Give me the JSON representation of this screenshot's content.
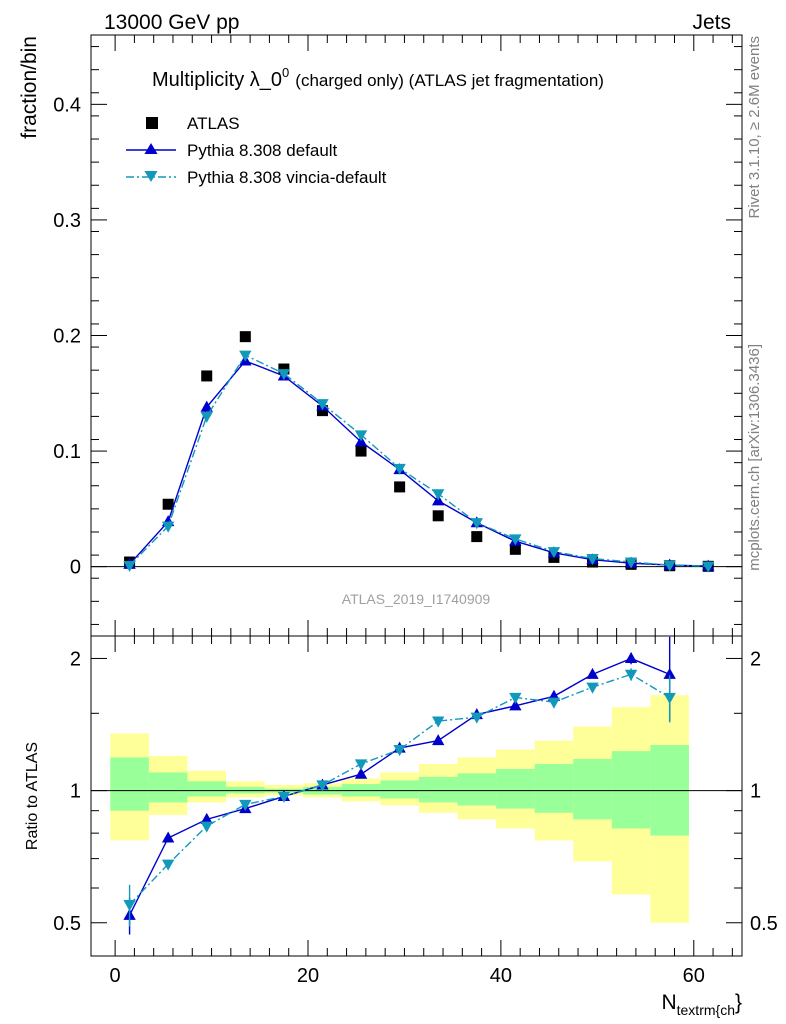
{
  "header": {
    "left": "13000 GeV pp",
    "right": "Jets"
  },
  "side_labels": {
    "rivet": "Rivet 3.1.10, ≥ 2.6M events",
    "mcplots": "mcplots.cern.ch [arXiv:1306.3436]"
  },
  "chart_data": [
    {
      "type": "scatter",
      "title": "Multiplicity λ_0",
      "title_sup": "0",
      "title_suffix": "(charged only) (ATLAS jet fragmentation)",
      "ylabel": "fraction/bin",
      "ylim": [
        -0.06,
        0.46
      ],
      "yticks": [
        0,
        0.1,
        0.2,
        0.3,
        0.4
      ],
      "ytick_labels": [
        "0",
        "0.1",
        "0.2",
        "0.3",
        "0.4"
      ],
      "watermark": "ATLAS_2019_I1740909",
      "x": [
        1.5,
        5.5,
        9.5,
        13.5,
        17.5,
        21.5,
        25.5,
        29.5,
        33.5,
        37.5,
        41.5,
        45.5,
        49.5,
        53.5,
        57.5,
        61.5
      ],
      "series": [
        {
          "name": "ATLAS",
          "color": "#000000",
          "marker": "square",
          "values": [
            0.004,
            0.054,
            0.165,
            0.199,
            0.171,
            0.135,
            0.1,
            0.069,
            0.044,
            0.026,
            0.015,
            0.008,
            0.004,
            0.002,
            0.0008,
            0.0003
          ]
        },
        {
          "name": "Pythia 8.308 default",
          "color": "#0000cc",
          "marker": "triangle-up",
          "line": "solid",
          "values": [
            0.002,
            0.039,
            0.138,
            0.178,
            0.165,
            0.139,
            0.108,
            0.084,
            0.057,
            0.038,
            0.022,
            0.012,
            0.006,
            0.003,
            0.0014,
            0.0005
          ]
        },
        {
          "name": "Pythia 8.308 vincia-default",
          "color": "#1199bb",
          "marker": "triangle-down",
          "line": "dashdot",
          "values": [
            0.001,
            0.035,
            0.13,
            0.183,
            0.167,
            0.141,
            0.114,
            0.085,
            0.063,
            0.038,
            0.024,
            0.013,
            0.007,
            0.004,
            0.0013,
            0.0004
          ]
        }
      ]
    },
    {
      "type": "scatter",
      "ylabel": "Ratio to ATLAS",
      "xlabel": "N",
      "xlabel_sub": "textrm{ch",
      "xlabel_tail": "}",
      "xlim": [
        -2.5,
        65
      ],
      "xticks": [
        0,
        20,
        40,
        60
      ],
      "xtick_labels": [
        "0",
        "20",
        "40",
        "60"
      ],
      "ylim": [
        0.42,
        2.25
      ],
      "yticks": [
        0.5,
        1,
        2
      ],
      "ytick_labels": [
        "0.5",
        "1",
        "2"
      ],
      "band_edges": [
        -0.5,
        3.5,
        7.5,
        11.5,
        15.5,
        19.5,
        23.5,
        27.5,
        31.5,
        35.5,
        39.5,
        43.5,
        47.5,
        51.5,
        55.5,
        59.5
      ],
      "band_inner": [
        [
          0.9,
          1.19
        ],
        [
          0.94,
          1.1
        ],
        [
          0.97,
          1.05
        ],
        [
          0.985,
          1.02
        ],
        [
          0.99,
          1.01
        ],
        [
          0.98,
          1.02
        ],
        [
          0.97,
          1.035
        ],
        [
          0.96,
          1.055
        ],
        [
          0.94,
          1.075
        ],
        [
          0.925,
          1.095
        ],
        [
          0.91,
          1.12
        ],
        [
          0.89,
          1.15
        ],
        [
          0.86,
          1.18
        ],
        [
          0.82,
          1.23
        ],
        [
          0.79,
          1.27
        ]
      ],
      "band_outer": [
        [
          0.77,
          1.35
        ],
        [
          0.88,
          1.2
        ],
        [
          0.94,
          1.11
        ],
        [
          0.965,
          1.05
        ],
        [
          0.975,
          1.03
        ],
        [
          0.965,
          1.04
        ],
        [
          0.945,
          1.065
        ],
        [
          0.925,
          1.1
        ],
        [
          0.89,
          1.15
        ],
        [
          0.86,
          1.19
        ],
        [
          0.82,
          1.24
        ],
        [
          0.77,
          1.3
        ],
        [
          0.69,
          1.4
        ],
        [
          0.58,
          1.55
        ],
        [
          0.5,
          1.65
        ]
      ],
      "colors": {
        "band_inner": "#99ff99",
        "band_outer": "#ffff99"
      },
      "x": [
        1.5,
        5.5,
        9.5,
        13.5,
        17.5,
        21.5,
        25.5,
        29.5,
        33.5,
        37.5,
        41.5,
        45.5,
        49.5,
        53.5,
        57.5
      ],
      "series": [
        {
          "name": "Pythia 8.308 default",
          "color": "#0000cc",
          "marker": "triangle-up",
          "line": "solid",
          "values": [
            0.52,
            0.78,
            0.86,
            0.91,
            0.97,
            1.03,
            1.09,
            1.25,
            1.3,
            1.49,
            1.56,
            1.64,
            1.84,
            2.0,
            1.84
          ],
          "errors": [
            0.05,
            0.01,
            0.01,
            0.01,
            0.01,
            0.01,
            0.01,
            0.01,
            0.015,
            0.02,
            0.025,
            0.03,
            0.04,
            0.06,
            0.4
          ]
        },
        {
          "name": "Pythia 8.308 vincia-default",
          "color": "#1199bb",
          "marker": "triangle-down",
          "line": "dashdot",
          "values": [
            0.55,
            0.68,
            0.83,
            0.93,
            0.97,
            1.03,
            1.15,
            1.24,
            1.44,
            1.47,
            1.63,
            1.59,
            1.72,
            1.84,
            1.63
          ],
          "errors": [
            0.06,
            0.01,
            0.01,
            0.01,
            0.01,
            0.01,
            0.01,
            0.01,
            0.015,
            0.02,
            0.025,
            0.03,
            0.04,
            0.06,
            0.2
          ]
        }
      ]
    }
  ]
}
